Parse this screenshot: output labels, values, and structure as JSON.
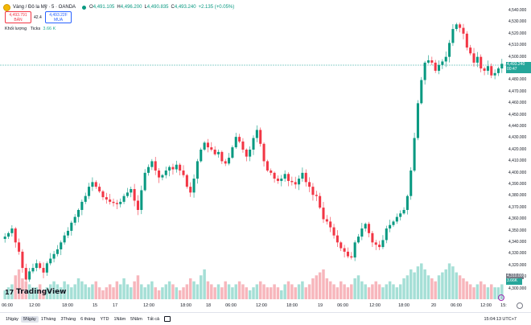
{
  "header": {
    "symbol": "Vàng / Đô la Mỹ · 5 · OANDA",
    "o_label": "O",
    "o_value": "4,491.105",
    "h_label": "H",
    "h_value": "4,496.200",
    "l_label": "L",
    "l_value": "4,490.835",
    "c_label": "C",
    "c_value": "4,493.240",
    "change": "+2.135 (+0.05%)"
  },
  "quote": {
    "sell_price": "4,493.791",
    "sell_label": "BÁN",
    "spread": "42.4",
    "buy_price": "4,493.22F",
    "buy_label": "MUA"
  },
  "volume_legend": {
    "label": "Khối lượng",
    "ticks_label": "Ticks",
    "value": "3.66 K"
  },
  "price_axis": {
    "ticks": [
      "4,540.000",
      "4,530.000",
      "4,520.000",
      "4,510.000",
      "4,500.000",
      "4,490.000",
      "4,480.000",
      "4,470.000",
      "4,460.000",
      "4,450.000",
      "4,440.000",
      "4,430.000",
      "4,420.000",
      "4,410.000",
      "4,400.000",
      "4,390.000",
      "4,380.000",
      "4,370.000",
      "4,360.000",
      "4,350.000",
      "4,340.000",
      "4,330.000",
      "4,320.000",
      "4,310.000",
      "4,300.000"
    ],
    "current_price": "4,493.240",
    "countdown": "00:47",
    "volume_badge": "3.66K",
    "last_badge": "4,310.000"
  },
  "time_axis": {
    "ticks": [
      "06:00",
      "12:00",
      "18:00",
      "15",
      "17",
      "12:00",
      "18:00",
      "18",
      "06:00",
      "12:00",
      "18:00",
      "19",
      "06:00",
      "12:00",
      "18:00",
      "20",
      "06:00",
      "12:00",
      "15:"
    ]
  },
  "bottom_bar": {
    "ranges": [
      "1Ngày",
      "5Ngày",
      "1Tháng",
      "3Tháng",
      "6 tháng",
      "YTD",
      "1Năm",
      "5Năm",
      "Tất cả"
    ],
    "active_range": "5Ngày",
    "clock": "15:04:13 UTC+7"
  },
  "branding": {
    "logo_text": "TradingView"
  },
  "colors": {
    "up": "#089981",
    "down": "#f23645",
    "volume_up": "#a5dfd6",
    "volume_down": "#f7b6bc",
    "price_line": "#26a69a"
  },
  "chart_data": {
    "type": "candlestick",
    "ylim": [
      4300,
      4545
    ],
    "close_path": [
      4345,
      4348,
      4352,
      4340,
      4332,
      4318,
      4308,
      4315,
      4318,
      4322,
      4318,
      4314,
      4322,
      4326,
      4330,
      4334,
      4340,
      4346,
      4350,
      4357,
      4362,
      4368,
      4375,
      4380,
      4388,
      4392,
      4388,
      4384,
      4379,
      4377,
      4375,
      4374,
      4373,
      4375,
      4380,
      4383,
      4386,
      4376,
      4368,
      4385,
      4400,
      4405,
      4410,
      4402,
      4396,
      4398,
      4402,
      4405,
      4403,
      4407,
      4402,
      4398,
      4388,
      4383,
      4395,
      4410,
      4420,
      4426,
      4422,
      4420,
      4416,
      4418,
      4410,
      4408,
      4413,
      4422,
      4431,
      4427,
      4420,
      4414,
      4420,
      4430,
      4437,
      4425,
      4410,
      4402,
      4400,
      4395,
      4393,
      4395,
      4399,
      4393,
      4392,
      4390,
      4395,
      4400,
      4392,
      4388,
      4381,
      4380,
      4370,
      4360,
      4358,
      4353,
      4346,
      4340,
      4335,
      4332,
      4328,
      4327,
      4340,
      4345,
      4352,
      4356,
      4348,
      4340,
      4338,
      4336,
      4342,
      4352,
      4355,
      4358,
      4362,
      4365,
      4368,
      4380,
      4402,
      4430,
      4460,
      4480,
      4495,
      4497,
      4495,
      4488,
      4493,
      4496,
      4500,
      4512,
      4524,
      4528,
      4525,
      4520,
      4508,
      4503,
      4495,
      4500,
      4490,
      4488,
      4492,
      4484,
      4486,
      4490,
      4494
    ],
    "volumes": [
      3,
      4,
      5,
      8,
      10,
      7,
      6,
      5,
      4,
      4,
      5,
      3,
      4,
      5,
      6,
      5,
      4,
      6,
      5,
      4,
      5,
      7,
      6,
      5,
      4,
      5,
      6,
      4,
      3,
      4,
      5,
      4,
      6,
      5,
      7,
      5,
      4,
      6,
      8,
      5,
      4,
      5,
      6,
      4,
      3,
      4,
      5,
      6,
      5,
      4,
      3,
      4,
      5,
      7,
      6,
      5,
      8,
      10,
      6,
      5,
      4,
      5,
      4,
      6,
      5,
      4,
      5,
      6,
      5,
      4,
      3,
      4,
      5,
      6,
      5,
      4,
      4,
      5,
      4,
      3,
      5,
      6,
      5,
      4,
      5,
      6,
      4,
      5,
      7,
      8,
      9,
      10,
      7,
      6,
      5,
      4,
      6,
      5,
      4,
      5,
      7,
      8,
      6,
      5,
      4,
      5,
      6,
      5,
      4,
      5,
      6,
      5,
      4,
      5,
      7,
      8,
      10,
      9,
      11,
      12,
      10,
      8,
      7,
      6,
      8,
      9,
      10,
      12,
      11,
      9,
      8,
      7,
      6,
      5,
      4,
      5,
      6,
      5,
      4,
      5,
      4,
      4,
      5
    ],
    "volume_max": 14
  }
}
